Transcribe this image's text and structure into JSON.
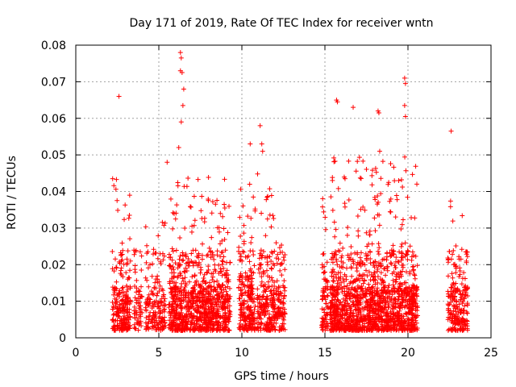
{
  "chart_data": {
    "type": "scatter",
    "title": "Day 171 of 2019, Rate Of TEC Index for receiver wntn",
    "xlabel": "GPS time / hours",
    "ylabel": "ROTI / TECUs",
    "xlim": [
      0,
      25
    ],
    "ylim": [
      0,
      0.08
    ],
    "xticks": [
      0,
      5,
      10,
      15,
      20,
      25
    ],
    "xtick_labels": [
      "0",
      "5",
      "10",
      "15",
      "20",
      "25"
    ],
    "yticks": [
      0,
      0.01,
      0.02,
      0.03,
      0.04,
      0.05,
      0.06,
      0.07,
      0.08
    ],
    "ytick_labels": [
      "0",
      "0.01",
      "0.02",
      "0.03",
      "0.04",
      "0.05",
      "0.06",
      "0.07",
      "0.08"
    ],
    "grid": true,
    "marker": "+",
    "marker_color": "#ff0000",
    "clusters": [
      {
        "x_start": 2.2,
        "x_end": 3.3,
        "count": 230,
        "y_max": 0.045
      },
      {
        "x_start": 3.5,
        "x_end": 4.0,
        "count": 60,
        "y_max": 0.025
      },
      {
        "x_start": 4.2,
        "x_end": 5.4,
        "count": 170,
        "y_max": 0.033
      },
      {
        "x_start": 5.6,
        "x_end": 9.3,
        "count": 900,
        "y_max": 0.044
      },
      {
        "x_start": 9.8,
        "x_end": 10.8,
        "count": 220,
        "y_max": 0.042
      },
      {
        "x_start": 10.9,
        "x_end": 12.6,
        "count": 330,
        "y_max": 0.045
      },
      {
        "x_start": 14.8,
        "x_end": 15.2,
        "count": 80,
        "y_max": 0.04
      },
      {
        "x_start": 15.3,
        "x_end": 20.6,
        "count": 1400,
        "y_max": 0.05
      },
      {
        "x_start": 22.4,
        "x_end": 23.6,
        "count": 230,
        "y_max": 0.038
      }
    ],
    "outliers": [
      {
        "x": 2.6,
        "y": 0.066
      },
      {
        "x": 6.3,
        "y": 0.078
      },
      {
        "x": 6.35,
        "y": 0.0765
      },
      {
        "x": 6.3,
        "y": 0.073
      },
      {
        "x": 6.4,
        "y": 0.0725
      },
      {
        "x": 6.5,
        "y": 0.068
      },
      {
        "x": 6.45,
        "y": 0.0635
      },
      {
        "x": 6.35,
        "y": 0.059
      },
      {
        "x": 6.2,
        "y": 0.052
      },
      {
        "x": 5.5,
        "y": 0.048
      },
      {
        "x": 10.5,
        "y": 0.053
      },
      {
        "x": 11.1,
        "y": 0.058
      },
      {
        "x": 11.2,
        "y": 0.053
      },
      {
        "x": 11.25,
        "y": 0.051
      },
      {
        "x": 15.7,
        "y": 0.065
      },
      {
        "x": 15.75,
        "y": 0.0645
      },
      {
        "x": 16.7,
        "y": 0.063
      },
      {
        "x": 18.2,
        "y": 0.062
      },
      {
        "x": 18.25,
        "y": 0.0615
      },
      {
        "x": 19.8,
        "y": 0.071
      },
      {
        "x": 19.85,
        "y": 0.0695
      },
      {
        "x": 19.8,
        "y": 0.0635
      },
      {
        "x": 19.85,
        "y": 0.0605
      },
      {
        "x": 18.3,
        "y": 0.051
      },
      {
        "x": 22.6,
        "y": 0.0565
      }
    ]
  }
}
